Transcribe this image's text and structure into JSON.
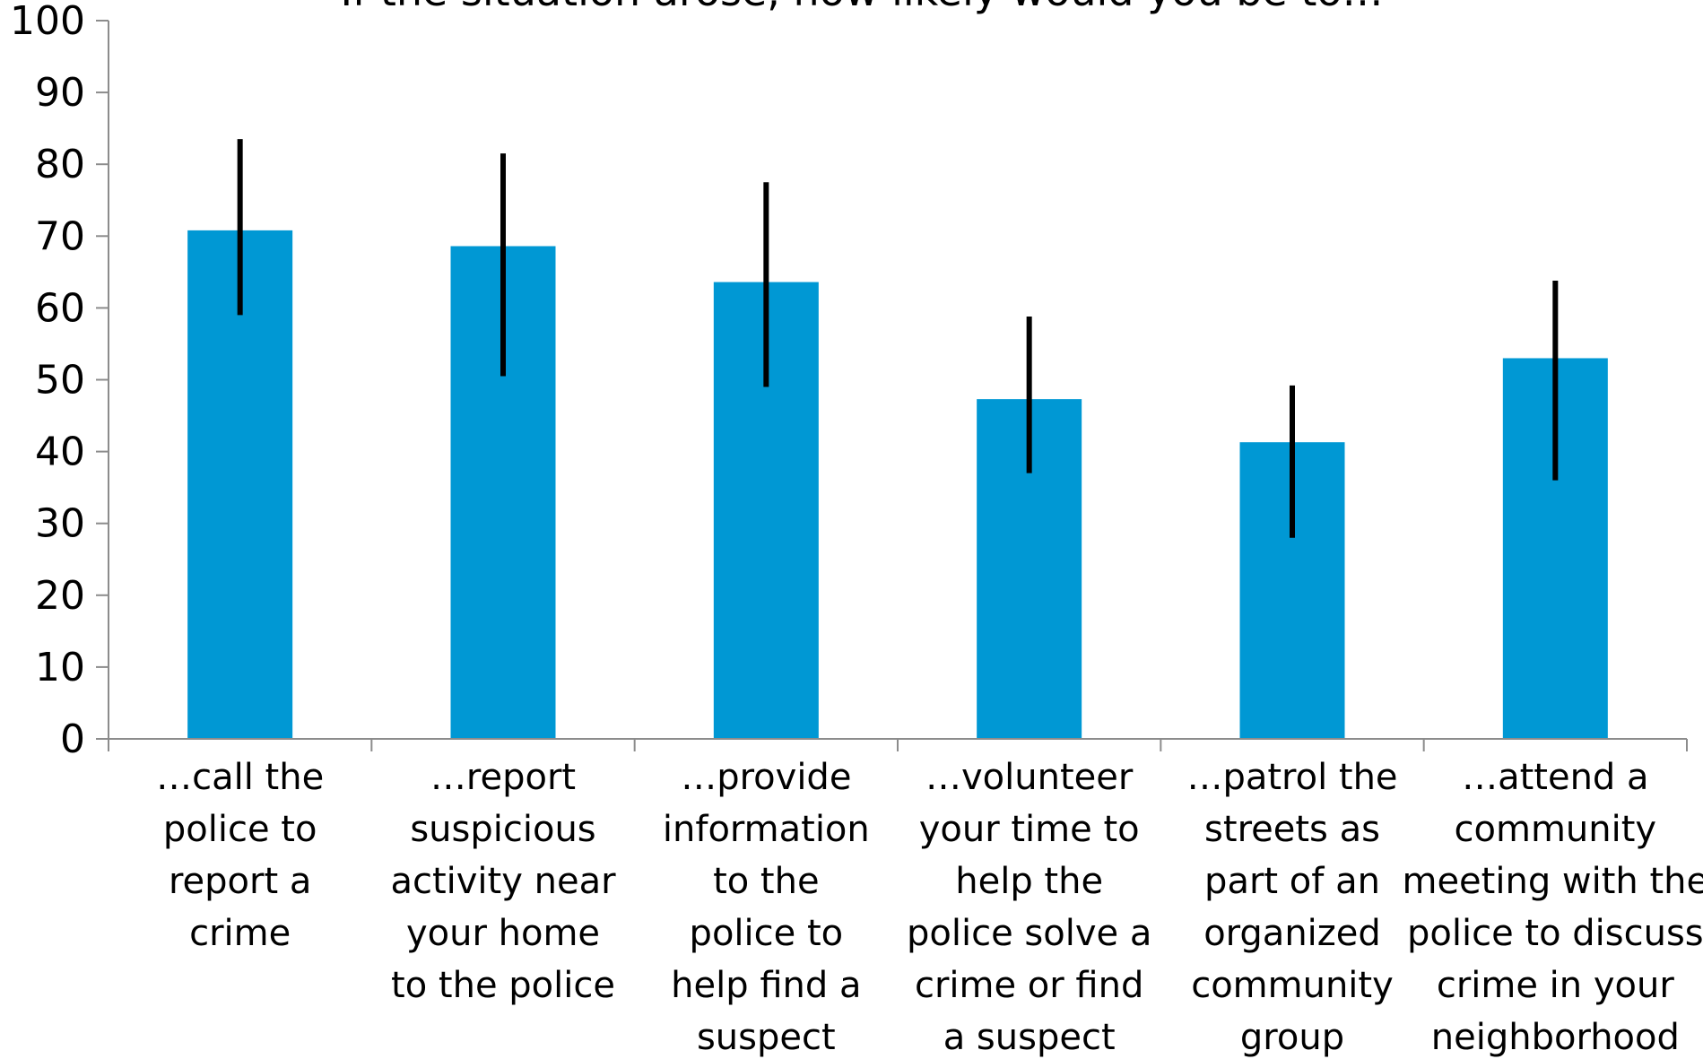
{
  "chart_data": {
    "type": "bar",
    "title": "If the situation arose, how likely would you be to…",
    "xlabel": "",
    "ylabel": "",
    "ylim": [
      0,
      100
    ],
    "yticks": [
      0,
      10,
      20,
      30,
      40,
      50,
      60,
      70,
      80,
      90,
      100
    ],
    "grid": false,
    "legend": "none",
    "bar_color": "#0098d4",
    "error_bar_color": "#000000",
    "categories": [
      [
        "…call the",
        "police to",
        "report a",
        "crime"
      ],
      [
        "…report",
        "suspicious",
        "activity near",
        "your home",
        "to the police"
      ],
      [
        "…provide",
        "information",
        "to the",
        "police to",
        "help find a",
        "suspect"
      ],
      [
        "…volunteer",
        "your time to",
        "help the",
        "police solve a",
        "crime or find",
        "a suspect"
      ],
      [
        "…patrol the",
        "streets as",
        "part of an",
        "organized",
        "community",
        "group"
      ],
      [
        "…attend a",
        "community",
        "meeting with the",
        "police to discuss",
        "crime in your",
        "neighborhood"
      ]
    ],
    "values": [
      70.8,
      68.6,
      63.6,
      47.3,
      41.3,
      53.0
    ],
    "error_low": [
      59,
      50.5,
      49,
      37,
      28,
      36
    ],
    "error_high": [
      83.5,
      81.5,
      77.5,
      58.8,
      49.2,
      63.8
    ]
  }
}
